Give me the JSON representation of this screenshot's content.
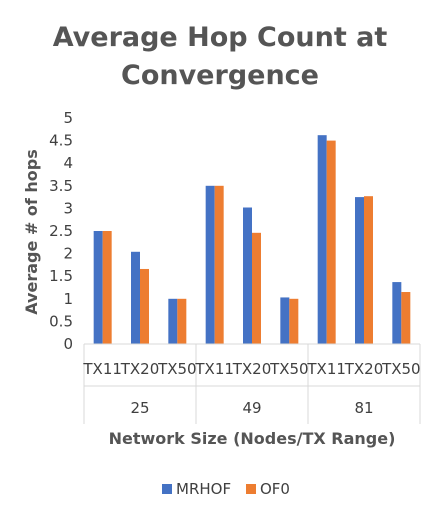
{
  "chart_data": {
    "type": "bar",
    "title_lines": [
      "Average Hop Count at",
      "Convergence"
    ],
    "xlabel": "Network Size (Nodes/TX Range)",
    "ylabel": "Average # of hops",
    "ylim": [
      0,
      5
    ],
    "yticks": [
      "0",
      "0.5",
      "1",
      "1.5",
      "2",
      "2.5",
      "3",
      "3.5",
      "4",
      "4.5",
      "5"
    ],
    "ytick_values": [
      0,
      0.5,
      1,
      1.5,
      2,
      2.5,
      3,
      3.5,
      4,
      4.5,
      5
    ],
    "groups": [
      {
        "label": "25",
        "categories": [
          "TX11",
          "TX20",
          "TX50"
        ]
      },
      {
        "label": "49",
        "categories": [
          "TX11",
          "TX20",
          "TX50"
        ]
      },
      {
        "label": "81",
        "categories": [
          "TX11",
          "TX20",
          "TX50"
        ]
      }
    ],
    "series": [
      {
        "name": "MRHOF",
        "color": "#4472C4",
        "values": [
          2.5,
          2.04,
          1.0,
          3.5,
          3.02,
          1.03,
          4.62,
          3.25,
          1.37
        ]
      },
      {
        "name": "OF0",
        "color": "#ED7D31",
        "values": [
          2.5,
          1.66,
          1.0,
          3.5,
          2.46,
          1.0,
          4.5,
          3.27,
          1.15
        ]
      }
    ],
    "grid": false,
    "legend_position": "bottom"
  }
}
